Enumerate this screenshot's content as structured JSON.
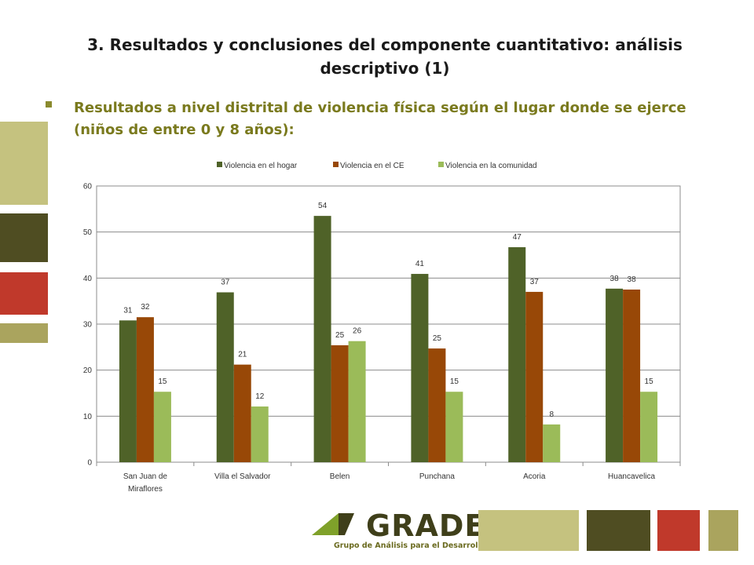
{
  "slide": {
    "title_line1": "3. Resultados y conclusiones del componente cuantitativo: análisis",
    "title_line2": "descriptivo  (1)",
    "bullet_line1": "Resultados a nivel distrital de violencia física según el lugar  donde se ejerce",
    "bullet_line2": "(niños de entre 0 y 8 años):",
    "bullet_icon": "square-bullet-icon"
  },
  "colors": {
    "bullet_text": "#7a7a1e",
    "bullet_mark": "#8a8a2e",
    "deco_light": "#c5c27f",
    "deco_dark": "#4f4d22",
    "deco_red": "#c0392b",
    "deco_olive": "#aaa45e",
    "logo_green": "#7fa12a",
    "logo_dark": "#3f3f1a",
    "logo_text": "#6b6b20"
  },
  "logo": {
    "word": "GRADE",
    "subtitle": "Grupo de Análisis para el Desarrollo"
  },
  "chart_data": {
    "type": "bar",
    "categories": [
      "San Juan de Miraflores",
      "Villa el Salvador",
      "Belen",
      "Punchana",
      "Acoria",
      "Huancavelica"
    ],
    "category_lines": [
      [
        "San Juan de",
        "Miraflores"
      ],
      [
        "Villa el Salvador"
      ],
      [
        "Belen"
      ],
      [
        "Punchana"
      ],
      [
        "Acoria"
      ],
      [
        "Huancavelica"
      ]
    ],
    "series": [
      {
        "name": "Violencia en el hogar",
        "color": "#4f6228",
        "values": [
          30.8,
          36.9,
          53.5,
          40.9,
          46.7,
          37.7
        ],
        "labels": [
          "31",
          "37",
          "54",
          "41",
          "47",
          "38"
        ]
      },
      {
        "name": "Violencia en el CE",
        "color": "#984807",
        "values": [
          31.5,
          21.2,
          25.4,
          24.7,
          37.0,
          37.5
        ],
        "labels": [
          "32",
          "21",
          "25",
          "25",
          "37",
          "38"
        ]
      },
      {
        "name": "Violencia en la comunidad",
        "color": "#9bbb59",
        "values": [
          15.3,
          12.1,
          26.3,
          15.3,
          8.2,
          15.3
        ],
        "labels": [
          "15",
          "12",
          "26",
          "15",
          "8",
          "15"
        ]
      }
    ],
    "ylim": [
      0,
      60
    ],
    "yticks": [
      0,
      10,
      20,
      30,
      40,
      50,
      60
    ],
    "grid": true,
    "legend": "top"
  }
}
